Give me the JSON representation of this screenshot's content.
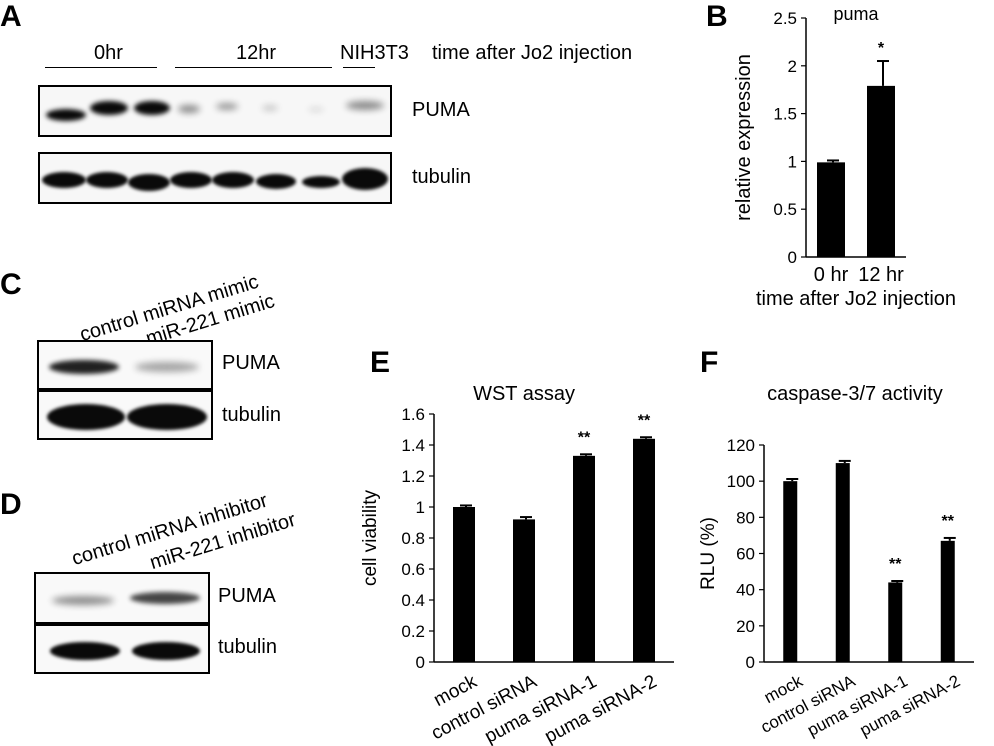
{
  "colors": {
    "bar": "#000000",
    "axis": "#000000",
    "band": "#0a0a0a",
    "background": "#ffffff"
  },
  "panelA": {
    "label": "A",
    "groups": [
      "0hr",
      "12hr",
      "NIH3T3"
    ],
    "caption": "time after Jo2 injection",
    "blot_labels": [
      "PUMA",
      "tubulin"
    ]
  },
  "panelB": {
    "label": "B"
  },
  "panelC": {
    "label": "C",
    "lanes": [
      "control miRNA mimic",
      "miR-221 mimic"
    ],
    "blot_labels": [
      "PUMA",
      "tubulin"
    ]
  },
  "panelD": {
    "label": "D",
    "lanes": [
      "control miRNA inhibitor",
      "miR-221 inhibitor"
    ],
    "blot_labels": [
      "PUMA",
      "tubulin"
    ]
  },
  "panelE": {
    "label": "E"
  },
  "panelF": {
    "label": "F"
  },
  "chart_data": [
    {
      "panel": "B",
      "type": "bar",
      "title": "puma",
      "categories": [
        "0 hr",
        "12 hr"
      ],
      "values": [
        0.99,
        1.79
      ],
      "errors": [
        0.02,
        0.26
      ],
      "significance": [
        "",
        "*"
      ],
      "xlabel": "time after Jo2 injection",
      "ylabel": "relative expression",
      "ylim": [
        0,
        2.5
      ],
      "yticks": [
        0,
        0.5,
        1,
        1.5,
        2,
        2.5
      ],
      "ytick_labels": [
        "0",
        "0.5",
        "1",
        "1.5",
        "2",
        "2.5"
      ],
      "grid": false,
      "legend": "none"
    },
    {
      "panel": "E",
      "type": "bar",
      "title": "WST assay",
      "categories": [
        "mock",
        "control siRNA",
        "puma siRNA-1",
        "puma siRNA-2"
      ],
      "values": [
        1.0,
        0.92,
        1.33,
        1.44
      ],
      "errors": [
        0.01,
        0.015,
        0.01,
        0.01
      ],
      "significance": [
        "",
        "",
        "**",
        "**"
      ],
      "xlabel": "",
      "ylabel": "cell viability",
      "ylim": [
        0,
        1.6
      ],
      "yticks": [
        0,
        0.2,
        0.4,
        0.6,
        0.8,
        1,
        1.2,
        1.4,
        1.6
      ],
      "ytick_labels": [
        "0",
        "0.2",
        "0.4",
        "0.6",
        "0.8",
        "1",
        "1.2",
        "1.4",
        "1.6"
      ],
      "grid": false,
      "legend": "none"
    },
    {
      "panel": "F",
      "type": "bar",
      "title": "caspase-3/7 activity",
      "categories": [
        "mock",
        "control siRNA",
        "puma siRNA-1",
        "puma siRNA-2"
      ],
      "values": [
        100,
        110,
        44,
        67
      ],
      "errors": [
        1.2,
        1.2,
        0.8,
        1.6
      ],
      "significance": [
        "",
        "",
        "**",
        "**"
      ],
      "xlabel": "",
      "ylabel": "RLU (%)",
      "ylim": [
        0,
        120
      ],
      "yticks": [
        0,
        20,
        40,
        60,
        80,
        100,
        120
      ],
      "ytick_labels": [
        "0",
        "20",
        "40",
        "60",
        "80",
        "100",
        "120"
      ],
      "grid": false,
      "legend": "none"
    }
  ]
}
